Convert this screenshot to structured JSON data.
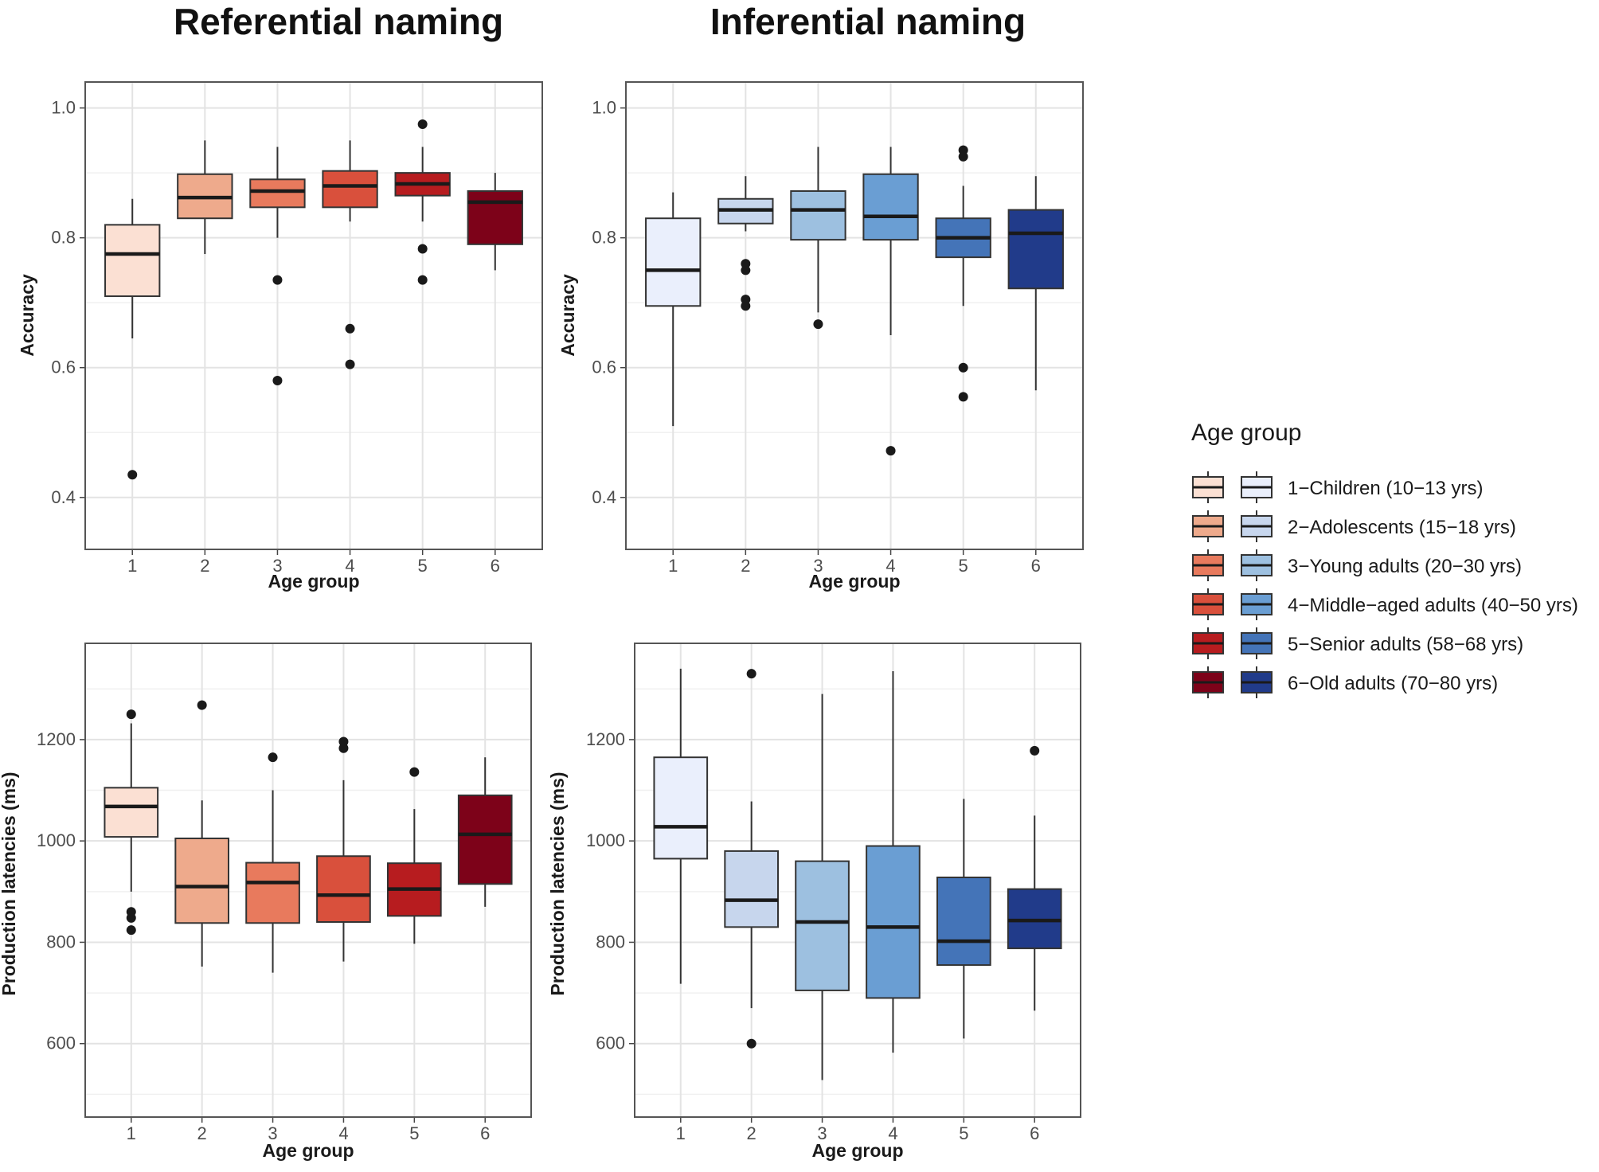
{
  "titles": {
    "left": "Referential naming",
    "right": "Inferential naming"
  },
  "colors": {
    "reds": [
      "#fbe0d3",
      "#eeaa8c",
      "#e87a5d",
      "#d9503c",
      "#b71c1f",
      "#7d0219"
    ],
    "blues": [
      "#eaeffc",
      "#c7d6ed",
      "#9dc0e0",
      "#6a9ed3",
      "#4474b8",
      "#213b8a"
    ]
  },
  "legend": {
    "title": "Age group",
    "items": [
      "1−Children (10−13 yrs)",
      "2−Adolescents (15−18 yrs)",
      "3−Young adults (20−30 yrs)",
      "4−Middle−aged adults (40−50 yrs)",
      "5−Senior adults (58−68 yrs)",
      "6−Old adults (70−80 yrs)"
    ]
  },
  "chart_data": [
    {
      "type": "box",
      "id": "referential-accuracy",
      "title": "Referential naming",
      "xlabel": "Age group",
      "ylabel": "Accuracy",
      "categories": [
        "1",
        "2",
        "3",
        "4",
        "5",
        "6"
      ],
      "ylim": [
        0.32,
        1.04
      ],
      "yticks": [
        "0.4",
        "0.6",
        "0.8",
        "1.0"
      ],
      "palette": "reds",
      "boxes": [
        {
          "min": 0.645,
          "q1": 0.71,
          "median": 0.775,
          "q3": 0.82,
          "max": 0.86,
          "outliers": [
            0.435
          ]
        },
        {
          "min": 0.775,
          "q1": 0.83,
          "median": 0.862,
          "q3": 0.898,
          "max": 0.95,
          "outliers": []
        },
        {
          "min": 0.8,
          "q1": 0.847,
          "median": 0.872,
          "q3": 0.89,
          "max": 0.94,
          "outliers": [
            0.735,
            0.58
          ]
        },
        {
          "min": 0.825,
          "q1": 0.847,
          "median": 0.88,
          "q3": 0.903,
          "max": 0.95,
          "outliers": [
            0.66,
            0.605
          ]
        },
        {
          "min": 0.825,
          "q1": 0.865,
          "median": 0.883,
          "q3": 0.9,
          "max": 0.94,
          "outliers": [
            0.975,
            0.783,
            0.735
          ]
        },
        {
          "min": 0.75,
          "q1": 0.79,
          "median": 0.855,
          "q3": 0.872,
          "max": 0.9,
          "outliers": []
        }
      ]
    },
    {
      "type": "box",
      "id": "inferential-accuracy",
      "title": "Inferential naming",
      "xlabel": "Age group",
      "ylabel": "Accuracy",
      "categories": [
        "1",
        "2",
        "3",
        "4",
        "5",
        "6"
      ],
      "ylim": [
        0.32,
        1.04
      ],
      "yticks": [
        "0.4",
        "0.6",
        "0.8",
        "1.0"
      ],
      "palette": "blues",
      "boxes": [
        {
          "min": 0.51,
          "q1": 0.695,
          "median": 0.75,
          "q3": 0.83,
          "max": 0.87,
          "outliers": []
        },
        {
          "min": 0.81,
          "q1": 0.822,
          "median": 0.843,
          "q3": 0.86,
          "max": 0.895,
          "outliers": [
            0.76,
            0.75,
            0.705,
            0.695
          ]
        },
        {
          "min": 0.685,
          "q1": 0.797,
          "median": 0.843,
          "q3": 0.872,
          "max": 0.94,
          "outliers": [
            0.667
          ]
        },
        {
          "min": 0.65,
          "q1": 0.797,
          "median": 0.833,
          "q3": 0.898,
          "max": 0.94,
          "outliers": [
            0.472
          ]
        },
        {
          "min": 0.695,
          "q1": 0.77,
          "median": 0.8,
          "q3": 0.83,
          "max": 0.88,
          "outliers": [
            0.935,
            0.925,
            0.6,
            0.555
          ]
        },
        {
          "min": 0.565,
          "q1": 0.722,
          "median": 0.807,
          "q3": 0.843,
          "max": 0.895,
          "outliers": []
        }
      ]
    },
    {
      "type": "box",
      "id": "referential-latency",
      "title": "Referential naming",
      "xlabel": "Age group",
      "ylabel": "Production latencies (ms)",
      "categories": [
        "1",
        "2",
        "3",
        "4",
        "5",
        "6"
      ],
      "ylim": [
        455,
        1390
      ],
      "yticks": [
        "600",
        "800",
        "1000",
        "1200"
      ],
      "palette": "reds",
      "boxes": [
        {
          "min": 900,
          "q1": 1008,
          "median": 1068,
          "q3": 1105,
          "max": 1232,
          "outliers": [
            1250,
            860,
            848,
            824
          ]
        },
        {
          "min": 752,
          "q1": 838,
          "median": 910,
          "q3": 1005,
          "max": 1080,
          "outliers": [
            1268
          ]
        },
        {
          "min": 740,
          "q1": 838,
          "median": 918,
          "q3": 957,
          "max": 1100,
          "outliers": [
            1165
          ]
        },
        {
          "min": 762,
          "q1": 840,
          "median": 893,
          "q3": 970,
          "max": 1120,
          "outliers": [
            1196,
            1183
          ]
        },
        {
          "min": 797,
          "q1": 852,
          "median": 905,
          "q3": 956,
          "max": 1063,
          "outliers": [
            1136
          ]
        },
        {
          "min": 870,
          "q1": 915,
          "median": 1013,
          "q3": 1090,
          "max": 1165,
          "outliers": []
        }
      ]
    },
    {
      "type": "box",
      "id": "inferential-latency",
      "title": "Inferential naming",
      "xlabel": "Age group",
      "ylabel": "Production latencies (ms)",
      "categories": [
        "1",
        "2",
        "3",
        "4",
        "5",
        "6"
      ],
      "ylim": [
        455,
        1390
      ],
      "yticks": [
        "600",
        "800",
        "1000",
        "1200"
      ],
      "palette": "blues",
      "boxes": [
        {
          "min": 718,
          "q1": 965,
          "median": 1028,
          "q3": 1165,
          "max": 1340,
          "outliers": []
        },
        {
          "min": 670,
          "q1": 830,
          "median": 883,
          "q3": 980,
          "max": 1078,
          "outliers": [
            1330,
            600
          ]
        },
        {
          "min": 528,
          "q1": 705,
          "median": 840,
          "q3": 960,
          "max": 1290,
          "outliers": []
        },
        {
          "min": 582,
          "q1": 690,
          "median": 830,
          "q3": 990,
          "max": 1335,
          "outliers": []
        },
        {
          "min": 610,
          "q1": 755,
          "median": 802,
          "q3": 928,
          "max": 1083,
          "outliers": []
        },
        {
          "min": 665,
          "q1": 788,
          "median": 843,
          "q3": 905,
          "max": 1050,
          "outliers": [
            1178
          ]
        }
      ]
    }
  ]
}
